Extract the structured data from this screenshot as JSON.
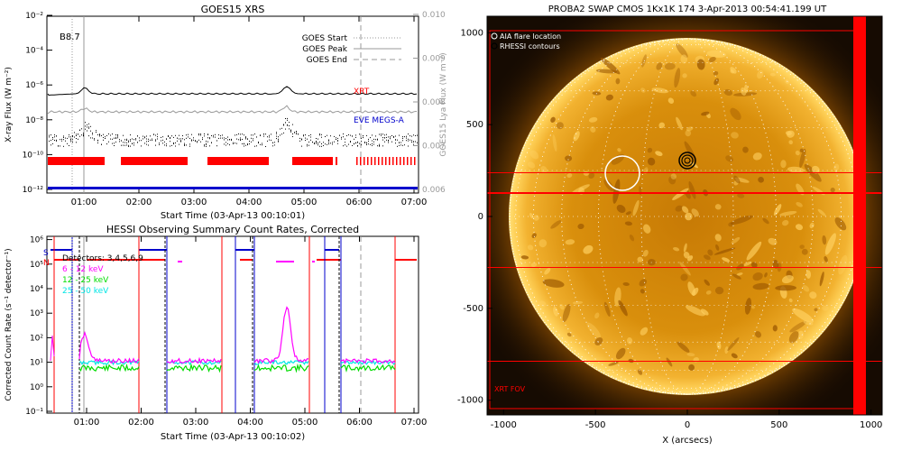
{
  "goes": {
    "title": "GOES15 XRS",
    "ylabel_left": "X-ray Flux (W m⁻²)",
    "ylabel_right": "GOES15 Lya Flux (W m⁻²)",
    "xlabel": "Start Time (03-Apr-13 00:10:01)",
    "xticks": [
      "01:00",
      "02:00",
      "03:00",
      "04:00",
      "05:00",
      "06:00",
      "07:00"
    ],
    "yticks_left": [
      "10⁻¹²",
      "10⁻¹⁰",
      "10⁻⁸",
      "10⁻⁶",
      "10⁻⁴",
      "10⁻²"
    ],
    "yticks_right": [
      "0.006",
      "0.007",
      "0.008",
      "0.009",
      "0.010"
    ],
    "level_label": "B8.7",
    "legend": [
      {
        "label": "GOES Start",
        "style": "dotted",
        "color": "#999999"
      },
      {
        "label": "GOES Peak",
        "style": "solid",
        "color": "#999999"
      },
      {
        "label": "GOES End",
        "style": "dashed",
        "color": "#999999"
      }
    ],
    "annotation_xrt": "XRT",
    "annotation_eve": "EVE MEGS-A",
    "colors": {
      "xrt": "#ff0000",
      "eve": "#0000cc",
      "flux": "#000000",
      "lya": "#999999"
    }
  },
  "hessi": {
    "title": "HESSI Observing Summary Count Rates, Corrected",
    "ylabel": "Corrected Count Rate (s⁻¹ detector⁻¹)",
    "xlabel": "Start Time (03-Apr-13 00:10:02)",
    "xticks": [
      "01:00",
      "02:00",
      "03:00",
      "04:00",
      "05:00",
      "06:00",
      "07:00"
    ],
    "yticks": [
      "10⁻¹",
      "10⁰",
      "10¹",
      "10²",
      "10³",
      "10⁴",
      "10⁵",
      "10⁶"
    ],
    "flag_s": "S",
    "flag_n": "N",
    "legend": [
      {
        "label": "Detectors: 3,4,5,6,9",
        "color": "#000000"
      },
      {
        "label": "6 - 12 keV",
        "color": "#ff00ff"
      },
      {
        "label": "12 - 25 keV",
        "color": "#00dd00"
      },
      {
        "label": "25 - 50 keV",
        "color": "#00e5e5"
      }
    ]
  },
  "swap": {
    "title": "PROBA2 SWAP CMOS 1Kx1K 174   3-Apr-2013 00:54:41.199 UT",
    "xlabel": "X (arcsecs)",
    "xticks": [
      "-1000",
      "-500",
      "0",
      "500",
      "1000"
    ],
    "yticks": [
      "1000",
      "500",
      "0",
      "-500",
      "-1000"
    ],
    "legend": [
      "AIA flare location",
      "RHESSI contours"
    ],
    "fov_label": "XRT FOV"
  },
  "chart_data": [
    {
      "type": "line",
      "title": "GOES15 XRS",
      "xlabel": "Start Time (03-Apr-13 00:10:01)",
      "ylabel": "X-ray Flux (W m⁻²)",
      "y_scale": "log",
      "ylim": [
        1e-12,
        0.01
      ],
      "xlim_hours": [
        0.17,
        7.17
      ],
      "markers": {
        "goes_start": "00:40",
        "goes_peak": "00:55",
        "goes_end": "06:00"
      },
      "series": [
        {
          "name": "XRT",
          "note": "red observation bars near 1e-10"
        },
        {
          "name": "EVE MEGS-A",
          "note": "blue observation bar near 1e-12"
        }
      ]
    },
    {
      "type": "line",
      "title": "HESSI Observing Summary Count Rates, Corrected",
      "xlabel": "Start Time (03-Apr-13 00:10:02)",
      "ylabel": "Corrected Count Rate (s⁻¹ detector⁻¹)",
      "y_scale": "log",
      "ylim": [
        0.1,
        1000000
      ],
      "series": [
        {
          "name": "6 - 12 keV",
          "peak_time": "04:48",
          "peak_value": 1500
        },
        {
          "name": "12 - 25 keV"
        },
        {
          "name": "25 - 50 keV"
        }
      ]
    }
  ]
}
